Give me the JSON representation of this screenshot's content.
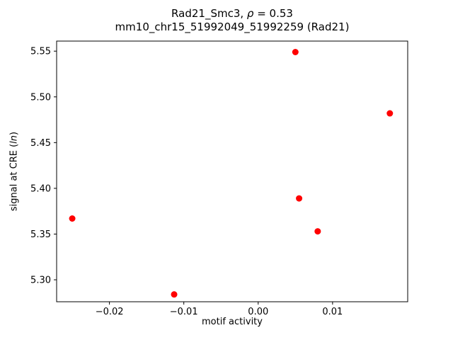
{
  "figure": {
    "background": "#ffffff",
    "title_prefix": "Rad21_Smc3, ",
    "title_rho": "ρ",
    "title_equals": " = 0.53",
    "title_line2": "mm10_chr15_51992049_51992259 (Rad21)",
    "xlabel": "motif activity",
    "ylabel_prefix": "signal at CRE (",
    "ylabel_italic": "ln",
    "ylabel_suffix": ")"
  },
  "chart_data": {
    "type": "scatter",
    "title": "Rad21_Smc3, ρ = 0.53\nmm10_chr15_51992049_51992259 (Rad21)",
    "xlabel": "motif activity",
    "ylabel": "signal at CRE (ln)",
    "marker_color": "#ff0000",
    "axis_color": "#000000",
    "xlim": [
      -0.0271,
      0.0201
    ],
    "ylim": [
      5.276,
      5.561
    ],
    "xticks": [
      -0.02,
      -0.01,
      0.0,
      0.01
    ],
    "xtick_labels": [
      "−0.02",
      "−0.01",
      "0.00",
      "0.01"
    ],
    "yticks": [
      5.3,
      5.35,
      5.4,
      5.45,
      5.5,
      5.55
    ],
    "ytick_labels": [
      "5.30",
      "5.35",
      "5.40",
      "5.45",
      "5.50",
      "5.55"
    ],
    "grid": false,
    "legend": null,
    "points": [
      {
        "x": -0.025,
        "y": 5.367
      },
      {
        "x": -0.0113,
        "y": 5.284
      },
      {
        "x": 0.005,
        "y": 5.549
      },
      {
        "x": 0.0055,
        "y": 5.389
      },
      {
        "x": 0.008,
        "y": 5.353
      },
      {
        "x": 0.0177,
        "y": 5.482
      }
    ]
  }
}
